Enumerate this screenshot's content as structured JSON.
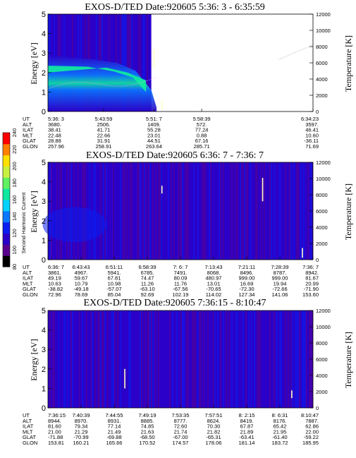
{
  "colorbar": {
    "label": "Second Harmonic Current",
    "ticks": [
      "80",
      "100",
      "120",
      "140",
      "160",
      "180",
      "200",
      "220",
      "240"
    ],
    "colors": [
      "#000000",
      "#5a0090",
      "#2b00c8",
      "#0a1ef0",
      "#0a78ff",
      "#00d2ff",
      "#10e8a0",
      "#60f060",
      "#c8f040",
      "#ffe000",
      "#ff8000",
      "#ff0000"
    ]
  },
  "chart_data": [
    {
      "type": "heatmap",
      "title": "EXOS-D/TED  Date:920605  5:36: 3 - 6:35:59",
      "ylabel": "Energy [eV]",
      "y2label": "Temperature [K]",
      "ylim": [
        0,
        5
      ],
      "y2lim": [
        0,
        12000
      ],
      "yticks": [
        "0",
        "1",
        "2",
        "3",
        "4",
        "5"
      ],
      "y2ticks": [
        "0",
        "2000",
        "4000",
        "6000",
        "8000",
        "10000",
        "12000"
      ],
      "data_coverage_fraction": 0.39,
      "table": {
        "rows": [
          {
            "label": "UT",
            "values": [
              "5:36: 3",
              "5:43:59",
              "5:51: 7",
              "5:58:39",
              "6:34:23"
            ]
          },
          {
            "label": "ALT",
            "values": [
              "3680.",
              "2506.",
              "1409.",
              "572.",
              "3597."
            ]
          },
          {
            "label": "ILAT",
            "values": [
              "38.41",
              "41.71",
              "55.28",
              "77.24",
              "46.41"
            ]
          },
          {
            "label": "MLT",
            "values": [
              "22.48",
              "22.66",
              "23.01",
              "0.88",
              "10.60"
            ]
          },
          {
            "label": "GLAT",
            "values": [
              "28.88",
              "31.91",
              "44.51",
              "67.16",
              "-36.11"
            ]
          },
          {
            "label": "GLON",
            "values": [
              "257.96",
              "258.91",
              "263.64",
              "285.71",
              "71.69"
            ]
          }
        ]
      },
      "streaks": [
        {
          "x": 0.4,
          "y0": 3.2,
          "y1": 2.2
        },
        {
          "x": 0.43,
          "y0": 0.6,
          "y1": 0.1
        }
      ]
    },
    {
      "type": "heatmap",
      "title": "EXOS-D/TED  Date:920605  6:36: 7 - 7:36: 7",
      "ylabel": "Energy [eV]",
      "y2label": "Temperature [K]",
      "ylim": [
        0,
        5
      ],
      "y2lim": [
        0,
        12000
      ],
      "yticks": [
        "0",
        "1",
        "2",
        "3",
        "4",
        "5"
      ],
      "y2ticks": [
        "0",
        "2000",
        "4000",
        "6000",
        "8000",
        "10000",
        "12000"
      ],
      "data_coverage_fraction": 1.0,
      "table": {
        "rows": [
          {
            "label": "UT",
            "values": [
              "6:36: 7",
              "6:43:43",
              "6:51:11",
              "6:58:39",
              "7: 6: 7",
              "7:13:43",
              "7:21:11",
              "7:28:39",
              "7:36: 7"
            ]
          },
          {
            "label": "ALT",
            "values": [
              "3861.",
              "4967.",
              "5941.",
              "6785.",
              "7491.",
              "8068.",
              "8496.",
              "8787.",
              "8942."
            ]
          },
          {
            "label": "ILAT",
            "values": [
              "49.19",
              "59.67",
              "67.81",
              "74.47",
              "80.09",
              "480.97",
              "999.00",
              "999.00",
              "81.67"
            ]
          },
          {
            "label": "MLT",
            "values": [
              "10.63",
              "10.79",
              "10.98",
              "11.26",
              "11.76",
              "13.01",
              "16.69",
              "19.94",
              "20.99"
            ]
          },
          {
            "label": "GLAT",
            "values": [
              "-38.82",
              "-49.18",
              "-57.07",
              "-63.10",
              "-67.56",
              "-70.65",
              "-72.30",
              "-72.66",
              "-71.90"
            ]
          },
          {
            "label": "GLON",
            "values": [
              "72.96",
              "78.69",
              "85.04",
              "92.69",
              "102.19",
              "114.02",
              "127.34",
              "141.06",
              "153.60"
            ]
          }
        ]
      },
      "streaks": [
        {
          "x": 0.43,
          "y0": 3.8,
          "y1": 3.4
        },
        {
          "x": 0.81,
          "y0": 4.2,
          "y1": 3.0
        },
        {
          "x": 0.96,
          "y0": 0.6,
          "y1": 0.1
        }
      ]
    },
    {
      "type": "heatmap",
      "title": "EXOS-D/TED  Date:920605  7:36:15 - 8:10:47",
      "ylabel": "Energy [eV]",
      "y2label": "Temperature [K]",
      "ylim": [
        0,
        5
      ],
      "y2lim": [
        0,
        12000
      ],
      "yticks": [
        "0",
        "1",
        "2",
        "3",
        "4",
        "5"
      ],
      "y2ticks": [
        "0",
        "2000",
        "4000",
        "6000",
        "8000",
        "10000",
        "12000"
      ],
      "data_coverage_fraction": 1.0,
      "table": {
        "rows": [
          {
            "label": "UT",
            "values": [
              "7:36:15",
              "7:40:39",
              "7:44:55",
              "7:49:19",
              "7:53:35",
              "7:57:51",
              "8: 2:15",
              "8: 6:31",
              "8:10:47"
            ]
          },
          {
            "label": "ALT",
            "values": [
              "8944.",
              "8970.",
              "8931.",
              "8885.",
              "8777.",
              "8624.",
              "8419.",
              "8176.",
              "7887."
            ]
          },
          {
            "label": "ILAT",
            "values": [
              "81.60",
              "79.34",
              "77.14",
              "74.85",
              "72.60",
              "70.30",
              "67.87",
              "65.42",
              "62.86"
            ]
          },
          {
            "label": "MLT",
            "values": [
              "21.00",
              "21.29",
              "21.49",
              "21.63",
              "21.74",
              "21.82",
              "21.89",
              "21.95",
              "22.00"
            ]
          },
          {
            "label": "GLAT",
            "values": [
              "-71.88",
              "-70.99",
              "-69.88",
              "-68.50",
              "-67.00",
              "-65.31",
              "-63.41",
              "-61.40",
              "-59.22"
            ]
          },
          {
            "label": "GLON",
            "values": [
              "153.81",
              "160.21",
              "165.66",
              "170.52",
              "174.57",
              "178.06",
              "181.14",
              "183.72",
              "185.95"
            ]
          }
        ]
      },
      "streaks": [
        {
          "x": 0.29,
          "y0": 2.0,
          "y1": 1.0
        },
        {
          "x": 0.92,
          "y0": 0.9,
          "y1": 0.5
        }
      ]
    }
  ]
}
